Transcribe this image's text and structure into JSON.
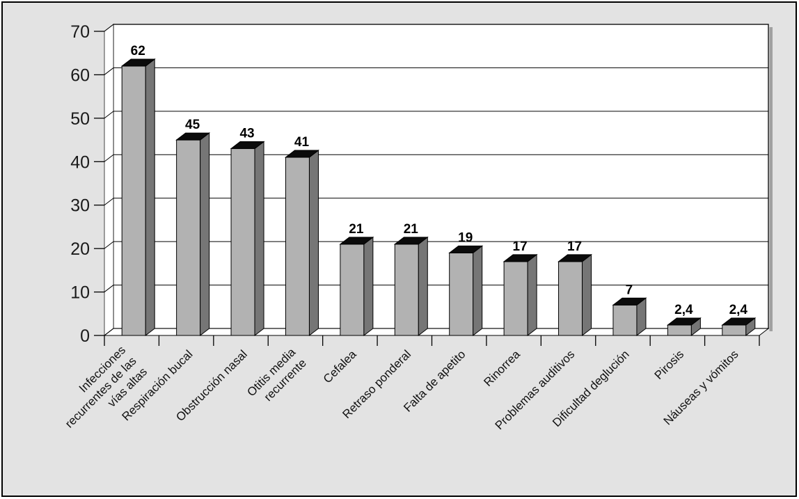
{
  "page": {
    "background": "#e3e3e3",
    "frame_border": "#000000"
  },
  "chart_data": {
    "type": "bar",
    "style": "3d-column",
    "title": "",
    "xlabel": "",
    "ylabel": "",
    "legend": false,
    "grid": true,
    "categories": [
      "Infecciones recurrentes de las vías altas",
      "Respiración bucal",
      "Obstrucción nasal",
      "Otitis media recurrente",
      "Cefalea",
      "Retraso ponderal",
      "Falta de apetito",
      "Rinorrea",
      "Problemas auditivos",
      "Dificultad deglución",
      "Pirosis",
      "Náuseas y vómitos"
    ],
    "category_lines": [
      [
        "Infecciones",
        "recurrentes de las",
        "vías altas"
      ],
      [
        "Respiración bucal"
      ],
      [
        "Obstrucción nasal"
      ],
      [
        "Otitis media",
        "recurrente"
      ],
      [
        "Cefalea"
      ],
      [
        "Retraso ponderal"
      ],
      [
        "Falta de apetito"
      ],
      [
        "Rinorrea"
      ],
      [
        "Problemas auditivos"
      ],
      [
        "Dificultad deglución"
      ],
      [
        "Pirosis"
      ],
      [
        "Náuseas y vómitos"
      ]
    ],
    "values": [
      62,
      45,
      43,
      41,
      21,
      21,
      19,
      17,
      17,
      7,
      2.4,
      2.4
    ],
    "value_labels": [
      "62",
      "45",
      "43",
      "41",
      "21",
      "21",
      "19",
      "17",
      "17",
      "7",
      "2,4",
      "2,4"
    ],
    "ylim": [
      0,
      70
    ],
    "yticks": [
      0,
      10,
      20,
      30,
      40,
      50,
      60,
      70
    ],
    "ytick_labels": [
      "0",
      "10",
      "20",
      "30",
      "40",
      "50",
      "60",
      "70"
    ],
    "colors": {
      "bar_front": "#b2b2b2",
      "bar_side": "#767676",
      "bar_top": "#0b0b0b",
      "plot_bg": "#ffffff",
      "grid": "#000000",
      "shadow": "#a0a0a0",
      "text": "#1a1a1a",
      "label_text": "#111111"
    }
  }
}
